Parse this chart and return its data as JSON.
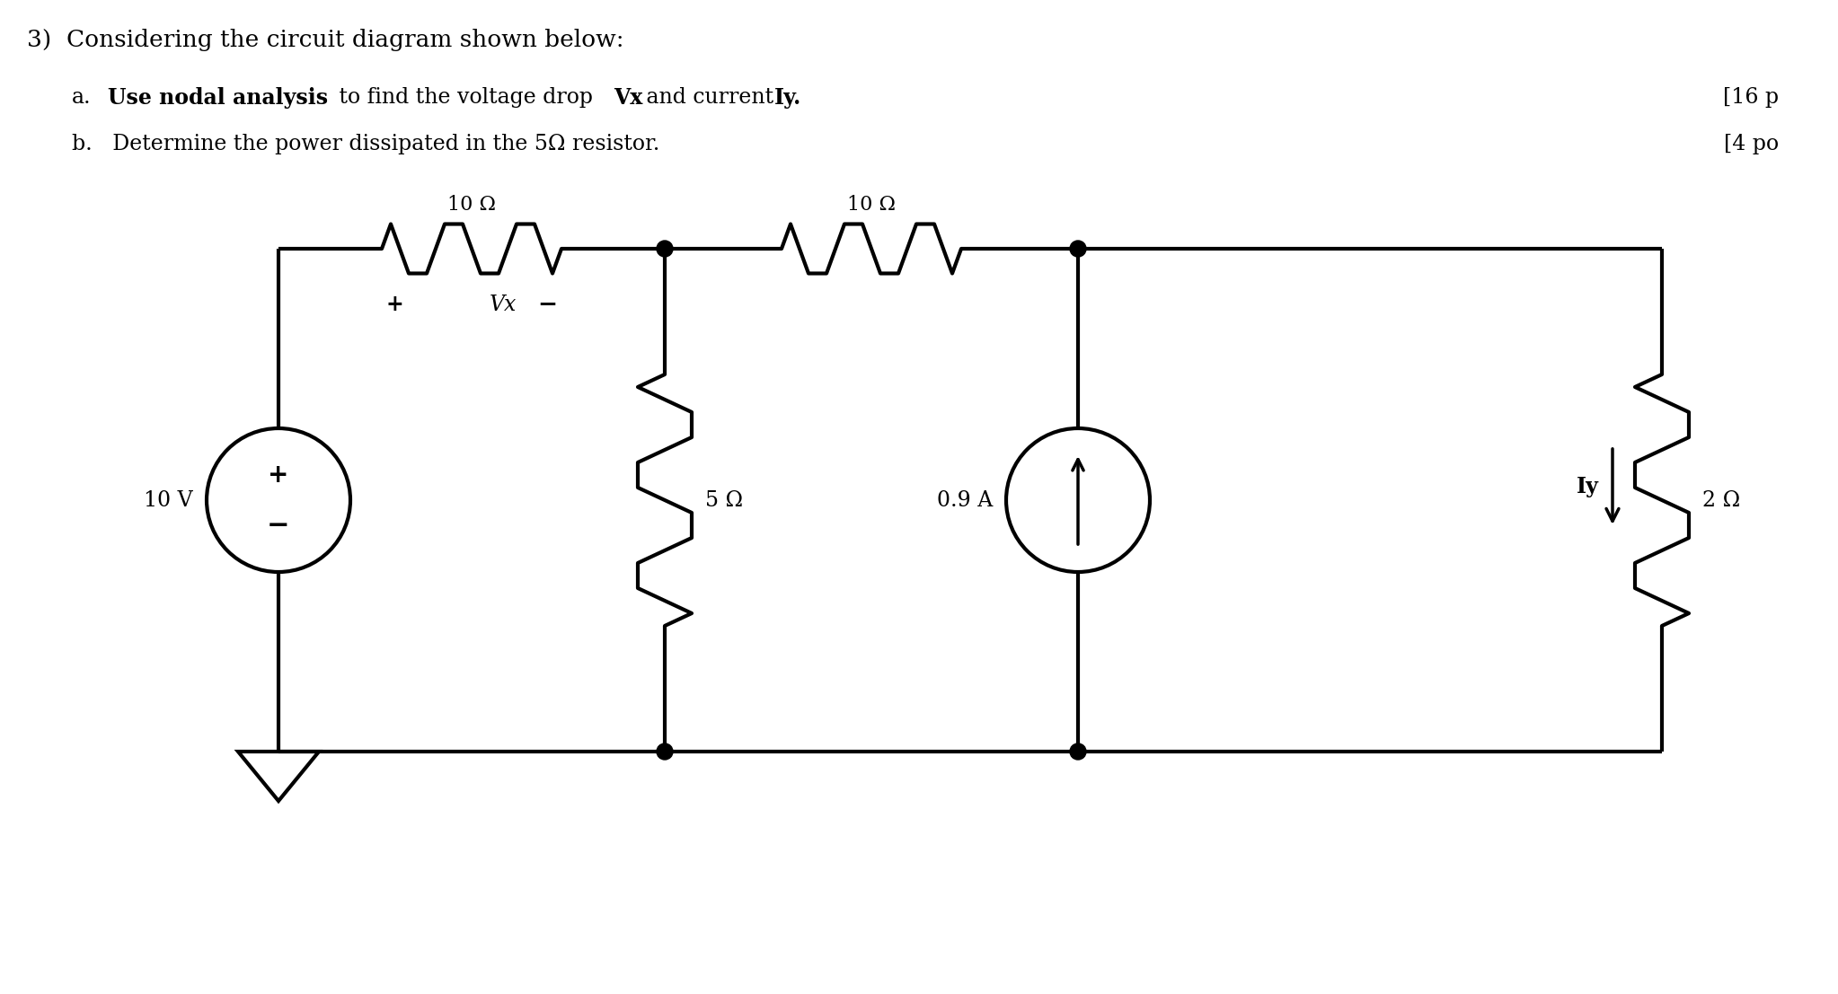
{
  "title_text": "3)  Considering the circuit diagram shown below:",
  "item_a_bold": "Use nodal analysis",
  "item_a_rest": " to find the voltage drop ",
  "item_a_bold2": "Vx",
  "item_a_rest2": " and current ",
  "item_a_bold3": "Iy.",
  "item_b": "b.   Determine the power dissipated in the 5Ω resistor.",
  "right_a": "[16 p",
  "right_b": "[4 po",
  "bg_color": "#ffffff",
  "line_color": "#000000",
  "lw": 3.0,
  "resistor_10_1_label": "10 Ω",
  "resistor_10_2_label": "10 Ω",
  "resistor_5_label": "5 Ω",
  "resistor_2_label": "2 Ω",
  "source_10v_label": "10 V",
  "source_09a_label": "0.9 A",
  "vx_label": "Vx",
  "iy_label": "Iy"
}
